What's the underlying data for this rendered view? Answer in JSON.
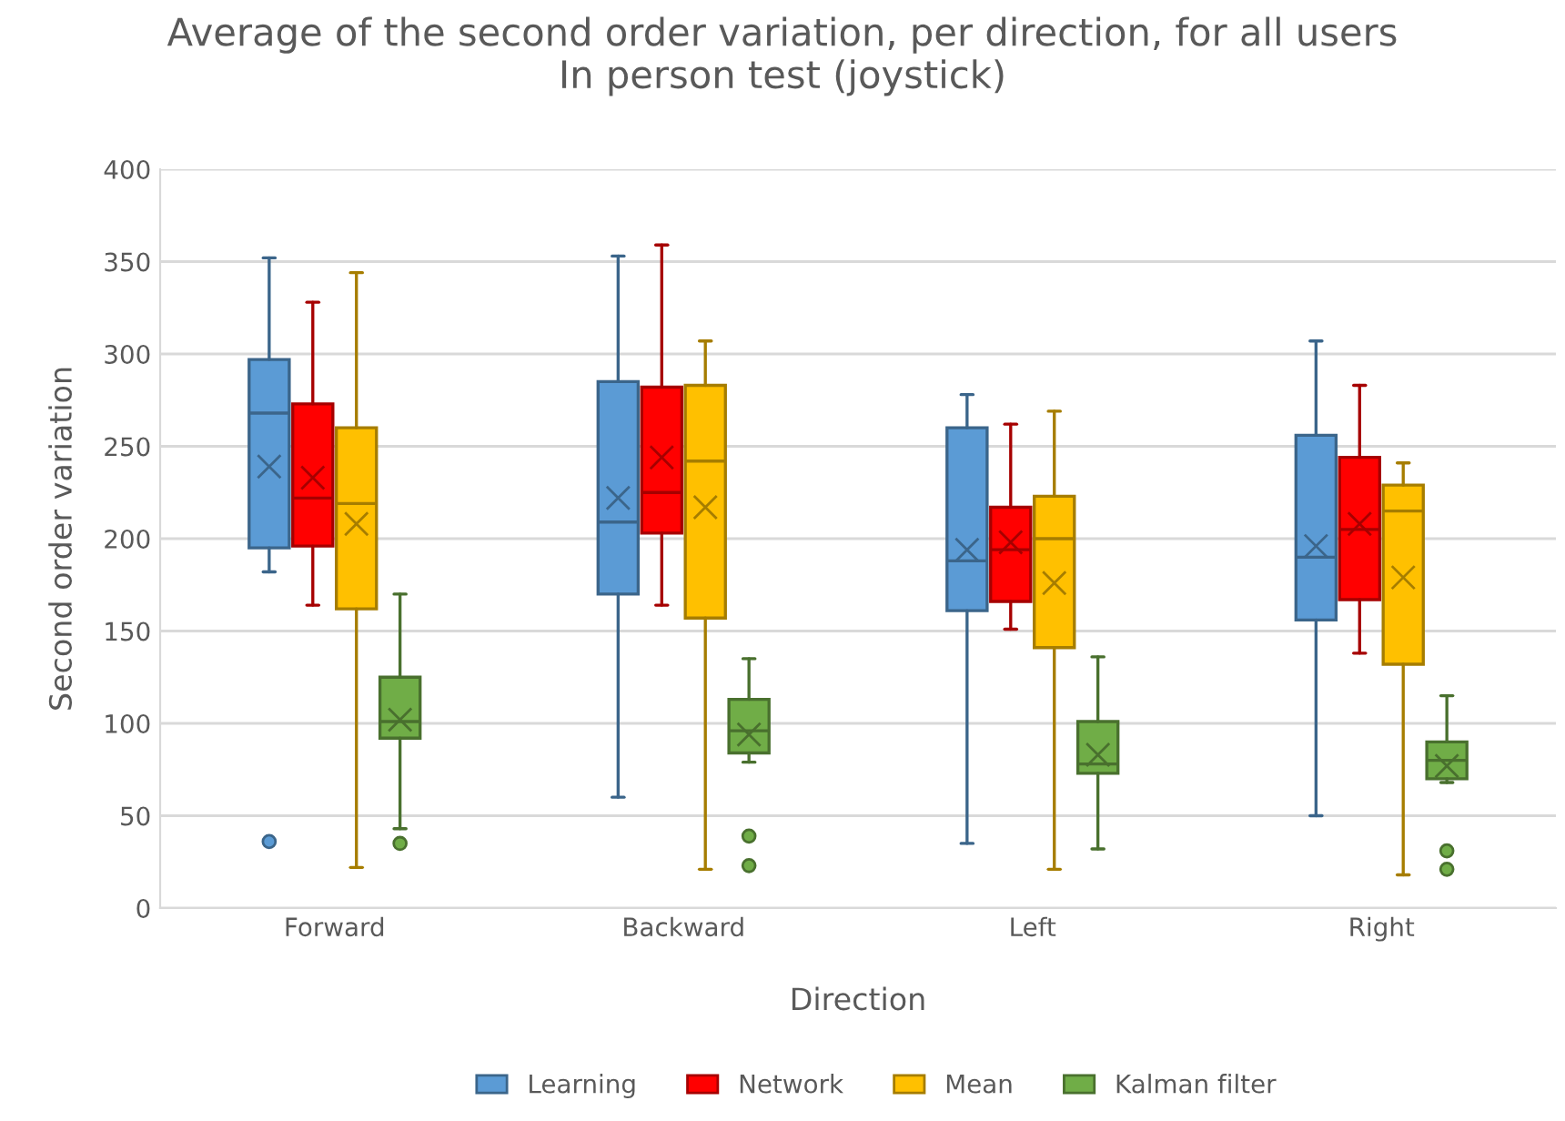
{
  "chart_data": {
    "type": "box",
    "title": "Average of the second order variation, per direction, for all users\nIn person test (joystick)",
    "xlabel": "Direction",
    "ylabel": "Second order variation",
    "categories": [
      "Forward",
      "Backward",
      "Left",
      "Right"
    ],
    "ylim": [
      0,
      400
    ],
    "yticks": [
      0,
      50,
      100,
      150,
      200,
      250,
      300,
      350,
      400
    ],
    "grid": "y",
    "legend": "bottom",
    "series": [
      {
        "name": "Learning",
        "color": "#5b9bd5",
        "boxes": [
          {
            "low": 182,
            "q1": 195,
            "median": 268,
            "q3": 297,
            "high": 352,
            "mean": 239,
            "outliers": [
              36
            ]
          },
          {
            "low": 60,
            "q1": 170,
            "median": 209,
            "q3": 285,
            "high": 353,
            "mean": 222
          },
          {
            "low": 35,
            "q1": 161,
            "median": 188,
            "q3": 260,
            "high": 278,
            "mean": 194
          },
          {
            "low": 50,
            "q1": 156,
            "median": 190,
            "q3": 256,
            "high": 307,
            "mean": 196
          }
        ]
      },
      {
        "name": "Network",
        "color": "#ff0000",
        "boxes": [
          {
            "low": 164,
            "q1": 196,
            "median": 222,
            "q3": 273,
            "high": 328,
            "mean": 233
          },
          {
            "low": 164,
            "q1": 203,
            "median": 225,
            "q3": 282,
            "high": 359,
            "mean": 244
          },
          {
            "low": 151,
            "q1": 166,
            "median": 194,
            "q3": 217,
            "high": 262,
            "mean": 198
          },
          {
            "low": 138,
            "q1": 167,
            "median": 205,
            "q3": 244,
            "high": 283,
            "mean": 208
          }
        ]
      },
      {
        "name": "Mean",
        "color": "#ffc000",
        "boxes": [
          {
            "low": 22,
            "q1": 162,
            "median": 219,
            "q3": 260,
            "high": 344,
            "mean": 208
          },
          {
            "low": 21,
            "q1": 157,
            "median": 242,
            "q3": 283,
            "high": 307,
            "mean": 217
          },
          {
            "low": 21,
            "q1": 141,
            "median": 200,
            "q3": 223,
            "high": 269,
            "mean": 176
          },
          {
            "low": 18,
            "q1": 132,
            "median": 215,
            "q3": 229,
            "high": 241,
            "mean": 179
          }
        ]
      },
      {
        "name": "Kalman filter",
        "color": "#70ad47",
        "boxes": [
          {
            "low": 43,
            "q1": 92,
            "median": 101,
            "q3": 125,
            "high": 170,
            "mean": 102,
            "outliers": [
              35
            ]
          },
          {
            "low": 79,
            "q1": 84,
            "median": 96,
            "q3": 113,
            "high": 135,
            "mean": 94,
            "outliers": [
              39,
              23
            ]
          },
          {
            "low": 32,
            "q1": 73,
            "median": 78,
            "q3": 101,
            "high": 136,
            "mean": 83
          },
          {
            "low": 68,
            "q1": 70,
            "median": 80,
            "q3": 90,
            "high": 115,
            "mean": 77,
            "outliers": [
              31,
              21
            ]
          }
        ]
      }
    ]
  }
}
